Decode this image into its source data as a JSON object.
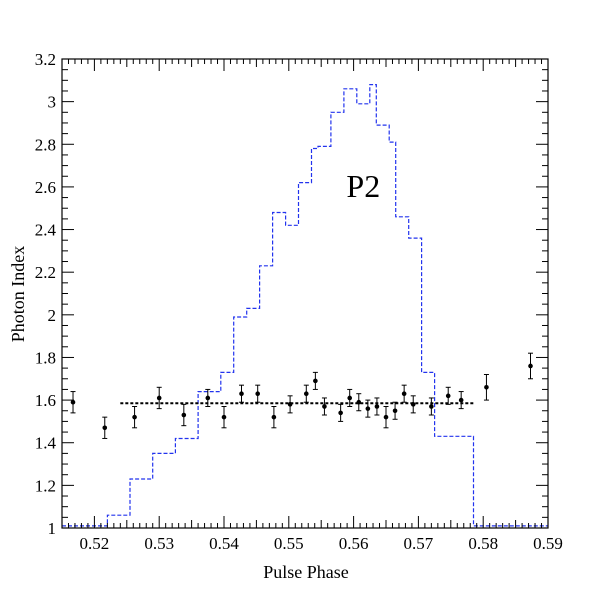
{
  "chart_data": {
    "type": "scatter",
    "xlabel": "Pulse Phase",
    "ylabel": "Photon Index",
    "xlim": [
      0.515,
      0.59
    ],
    "ylim": [
      1.0,
      3.2
    ],
    "x_ticks": [
      0.52,
      0.53,
      0.54,
      0.55,
      0.56,
      0.57,
      0.58,
      0.59
    ],
    "x_tick_labels": [
      "0.52",
      "0.53",
      "0.54",
      "0.55",
      "0.56",
      "0.57",
      "0.58",
      "0.59"
    ],
    "y_ticks": [
      1,
      1.2,
      1.4,
      1.6,
      1.8,
      2,
      2.2,
      2.4,
      2.6,
      2.8,
      3,
      3.2
    ],
    "y_tick_labels": [
      "1",
      "1.2",
      "1.4",
      "1.6",
      "1.8",
      "2",
      "2.2",
      "2.4",
      "2.6",
      "2.8",
      "3",
      "3.2"
    ],
    "annotation": "P2",
    "annotation_at": {
      "x": 0.5615,
      "y": 2.6
    },
    "grid": false,
    "points": {
      "x": [
        0.5167,
        0.5216,
        0.5262,
        0.53,
        0.5338,
        0.5375,
        0.54,
        0.5427,
        0.5452,
        0.5477,
        0.5502,
        0.5527,
        0.5541,
        0.5555,
        0.558,
        0.5594,
        0.5608,
        0.5622,
        0.5636,
        0.565,
        0.5664,
        0.5678,
        0.5692,
        0.572,
        0.5746,
        0.5766,
        0.5805,
        0.5873
      ],
      "y": [
        1.59,
        1.47,
        1.52,
        1.61,
        1.53,
        1.61,
        1.52,
        1.63,
        1.63,
        1.52,
        1.58,
        1.63,
        1.69,
        1.57,
        1.54,
        1.61,
        1.59,
        1.56,
        1.57,
        1.52,
        1.55,
        1.63,
        1.58,
        1.57,
        1.62,
        1.6,
        1.66,
        1.76
      ],
      "yerr": [
        0.05,
        0.05,
        0.05,
        0.05,
        0.05,
        0.04,
        0.05,
        0.04,
        0.04,
        0.05,
        0.04,
        0.04,
        0.04,
        0.04,
        0.04,
        0.04,
        0.04,
        0.04,
        0.04,
        0.05,
        0.04,
        0.04,
        0.04,
        0.04,
        0.04,
        0.04,
        0.06,
        0.06
      ],
      "color": "#000000"
    },
    "fit_line": {
      "x": [
        0.524,
        0.5785
      ],
      "y": 1.585,
      "style": "dotted",
      "color": "#000000"
    },
    "profile": {
      "style": "dashed-step",
      "color": "#2233ee",
      "edges": [
        0.515,
        0.5185,
        0.522,
        0.5255,
        0.529,
        0.5325,
        0.536,
        0.5395,
        0.5415,
        0.5435,
        0.5455,
        0.5475,
        0.5495,
        0.5515,
        0.5535,
        0.5545,
        0.5565,
        0.5585,
        0.5605,
        0.5625,
        0.5635,
        0.5655,
        0.5665,
        0.5685,
        0.5705,
        0.5725,
        0.5745,
        0.5765,
        0.5785,
        0.5795,
        0.59
      ],
      "values": [
        1.01,
        1.01,
        1.06,
        1.23,
        1.35,
        1.42,
        1.64,
        1.73,
        1.99,
        2.03,
        2.23,
        2.48,
        2.42,
        2.62,
        2.78,
        2.79,
        2.95,
        3.06,
        2.99,
        3.08,
        2.89,
        2.81,
        2.46,
        2.36,
        1.73,
        1.43,
        1.43,
        1.43,
        1.01,
        1.01
      ]
    }
  }
}
